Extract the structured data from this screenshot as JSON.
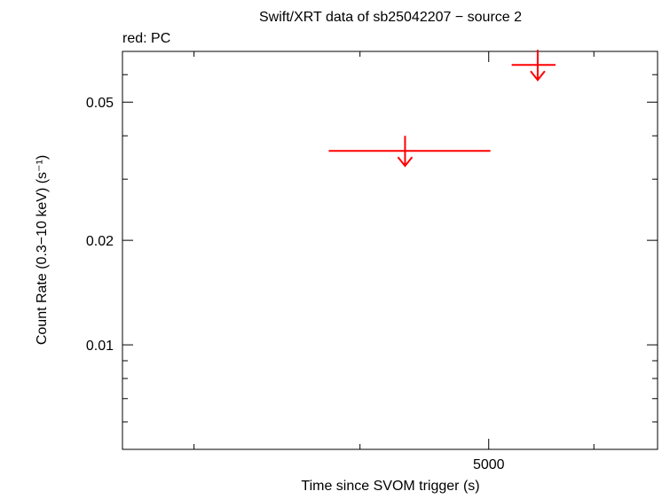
{
  "chart_data": {
    "type": "upper-limits",
    "title": "Swift/XRT data of sb25042207 − source 2",
    "subtitle": "red: PC",
    "x_label": "Time since SVOM trigger (s)",
    "y_label": "Count Rate (0.3−10 keV) (s⁻¹)",
    "log_x": true,
    "log_y": true,
    "xlim": [
      2650,
      6700
    ],
    "ylim": [
      0.005,
      0.07
    ],
    "xticks": [
      5000
    ],
    "xminor_ticks": [
      3000,
      4000,
      6000
    ],
    "yticks": [
      0.01,
      0.02,
      0.05
    ],
    "yminor_ticks": [
      0.006,
      0.007,
      0.008,
      0.009,
      0.03,
      0.04,
      0.06
    ],
    "series": [
      {
        "name": "PC",
        "color": "#ff0000",
        "x": [
          4325,
          5443
        ],
        "x_low": [
          3789,
          5203
        ],
        "x_high": [
          5015,
          5614
        ],
        "values": [
          0.0362,
          0.064
        ]
      }
    ]
  }
}
